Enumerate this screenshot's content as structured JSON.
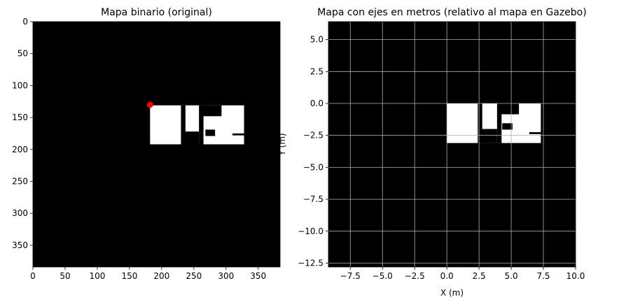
{
  "chart_data": [
    {
      "type": "heatmap",
      "title": "Mapa binario (original)",
      "xlabel": "",
      "ylabel": "",
      "xlim": [
        0,
        384
      ],
      "ylim": [
        384,
        0
      ],
      "x_ticks": [
        0,
        50,
        100,
        150,
        200,
        250,
        300,
        350
      ],
      "y_ticks": [
        0,
        50,
        100,
        150,
        200,
        250,
        300,
        350
      ],
      "x_tick_labels": [
        "0",
        "50",
        "100",
        "150",
        "200",
        "250",
        "300",
        "350"
      ],
      "y_tick_labels": [
        "0",
        "50",
        "100",
        "150",
        "200",
        "250",
        "300",
        "350"
      ],
      "background_color": "#000000",
      "free_color": "#ffffff",
      "free_regions": [
        {
          "x": [
            182,
            328
          ],
          "y": [
            131,
            192
          ]
        }
      ],
      "obstacles": [
        {
          "x": [
            230,
            237
          ],
          "y": [
            131,
            192
          ]
        },
        {
          "x": [
            235,
            258
          ],
          "y": [
            172,
            192
          ]
        },
        {
          "x": [
            258,
            265
          ],
          "y": [
            131,
            192
          ]
        },
        {
          "x": [
            262,
            293
          ],
          "y": [
            131,
            148
          ]
        },
        {
          "x": [
            268,
            283
          ],
          "y": [
            169,
            179
          ]
        },
        {
          "x": [
            310,
            328
          ],
          "y": [
            175,
            178
          ]
        }
      ],
      "marker": {
        "x": 182,
        "y": 130,
        "color": "#ff0000"
      },
      "grid": false
    },
    {
      "type": "heatmap",
      "title": "Mapa con ejes en metros (relativo al mapa en Gazebo)",
      "xlabel": "X (m)",
      "ylabel": "Y (m)",
      "xlim": [
        -9.2,
        10.0
      ],
      "ylim": [
        -12.8,
        6.4
      ],
      "x_ticks": [
        -7.5,
        -5.0,
        -2.5,
        0.0,
        2.5,
        5.0,
        7.5,
        10.0
      ],
      "y_ticks": [
        5.0,
        2.5,
        0.0,
        -2.5,
        -5.0,
        -7.5,
        -10.0,
        -12.5
      ],
      "x_tick_labels": [
        "−7.5",
        "−5.0",
        "−2.5",
        "0.0",
        "2.5",
        "5.0",
        "7.5",
        "10.0"
      ],
      "y_tick_labels": [
        "5.0",
        "2.5",
        "0.0",
        "−2.5",
        "−5.0",
        "−7.5",
        "−10.0",
        "−12.5"
      ],
      "background_color": "#000000",
      "free_color": "#ffffff",
      "grid_color": "#b0b0b0",
      "free_regions": [
        {
          "x": [
            0.0,
            7.3
          ],
          "y": [
            -3.1,
            0.0
          ]
        }
      ],
      "obstacles": [
        {
          "x": [
            2.4,
            2.75
          ],
          "y": [
            -3.1,
            0.0
          ]
        },
        {
          "x": [
            2.7,
            3.9
          ],
          "y": [
            -3.1,
            -2.0
          ]
        },
        {
          "x": [
            3.9,
            4.25
          ],
          "y": [
            -3.1,
            0.0
          ]
        },
        {
          "x": [
            4.1,
            5.6
          ],
          "y": [
            -0.85,
            0.0
          ]
        },
        {
          "x": [
            4.3,
            5.1
          ],
          "y": [
            -2.05,
            -1.55
          ]
        },
        {
          "x": [
            6.4,
            7.3
          ],
          "y": [
            -2.4,
            -2.25
          ]
        }
      ],
      "grid": true
    }
  ]
}
